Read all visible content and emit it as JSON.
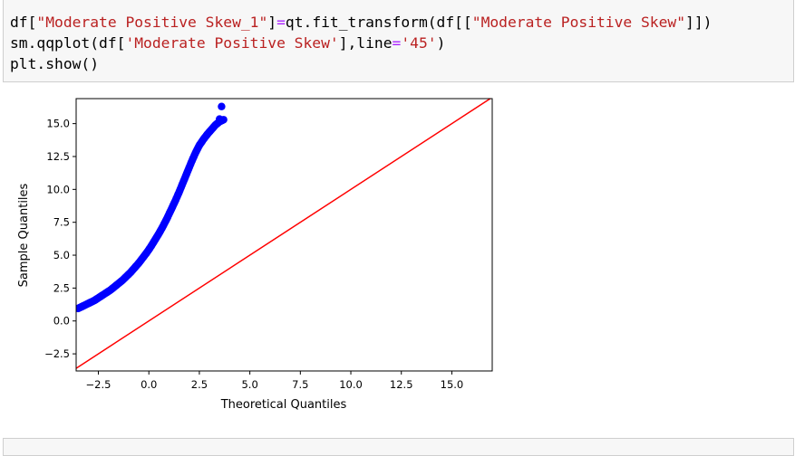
{
  "code": {
    "line1": [
      {
        "t": "df[",
        "c": ""
      },
      {
        "t": "\"Moderate Positive Skew_1\"",
        "c": "str"
      },
      {
        "t": "]",
        "c": ""
      },
      {
        "t": "=",
        "c": "op"
      },
      {
        "t": "qt.fit_transform(df[[",
        "c": ""
      },
      {
        "t": "\"Moderate Positive Skew\"",
        "c": "str"
      },
      {
        "t": "]])",
        "c": ""
      }
    ],
    "line2": [
      {
        "t": "sm.qqplot(df[",
        "c": ""
      },
      {
        "t": "'Moderate Positive Skew'",
        "c": "str"
      },
      {
        "t": "],line",
        "c": ""
      },
      {
        "t": "=",
        "c": "op"
      },
      {
        "t": "'45'",
        "c": "str"
      },
      {
        "t": ")",
        "c": ""
      }
    ],
    "line3": [
      {
        "t": "plt.show()",
        "c": ""
      }
    ]
  },
  "chart_data": {
    "type": "scatter",
    "xlabel": "Theoretical Quantiles",
    "ylabel": "Sample Quantiles",
    "xlim": [
      -3.6,
      17.0
    ],
    "ylim": [
      -3.8,
      16.9
    ],
    "xticks": [
      -2.5,
      0.0,
      2.5,
      5.0,
      7.5,
      10.0,
      12.5,
      15.0
    ],
    "xtick_labels": [
      "−2.5",
      "0.0",
      "2.5",
      "5.0",
      "7.5",
      "10.0",
      "12.5",
      "15.0"
    ],
    "yticks": [
      -2.5,
      0.0,
      2.5,
      5.0,
      7.5,
      10.0,
      12.5,
      15.0
    ],
    "ytick_labels": [
      "−2.5",
      "0.0",
      "2.5",
      "5.0",
      "7.5",
      "10.0",
      "12.5",
      "15.0"
    ],
    "points_color": "#0000ff",
    "line_color": "#ff0000",
    "reference_line": {
      "label": "45",
      "from": [
        -3.6,
        -3.6
      ],
      "to": [
        17.0,
        17.0
      ]
    },
    "series": [
      {
        "x": [
          -3.5,
          -3.3,
          -3.1,
          -2.9,
          -2.7,
          -2.5,
          -2.3,
          -2.1,
          -1.9,
          -1.7,
          -1.5,
          -1.3,
          -1.1,
          -0.9,
          -0.7,
          -0.5,
          -0.3,
          -0.1,
          0.1,
          0.3,
          0.5,
          0.7,
          0.9,
          1.1,
          1.3,
          1.5,
          1.7,
          1.9,
          2.1,
          2.3,
          2.5,
          2.7,
          2.9,
          3.1,
          3.3,
          3.5,
          3.7,
          3.5,
          3.6
        ],
        "y": [
          0.95,
          1.1,
          1.25,
          1.4,
          1.55,
          1.75,
          1.95,
          2.15,
          2.35,
          2.6,
          2.85,
          3.1,
          3.4,
          3.7,
          4.05,
          4.4,
          4.8,
          5.2,
          5.65,
          6.15,
          6.65,
          7.2,
          7.8,
          8.45,
          9.1,
          9.8,
          10.55,
          11.3,
          12.05,
          12.75,
          13.35,
          13.8,
          14.2,
          14.55,
          14.9,
          15.15,
          15.3,
          15.35,
          16.3
        ]
      }
    ]
  }
}
